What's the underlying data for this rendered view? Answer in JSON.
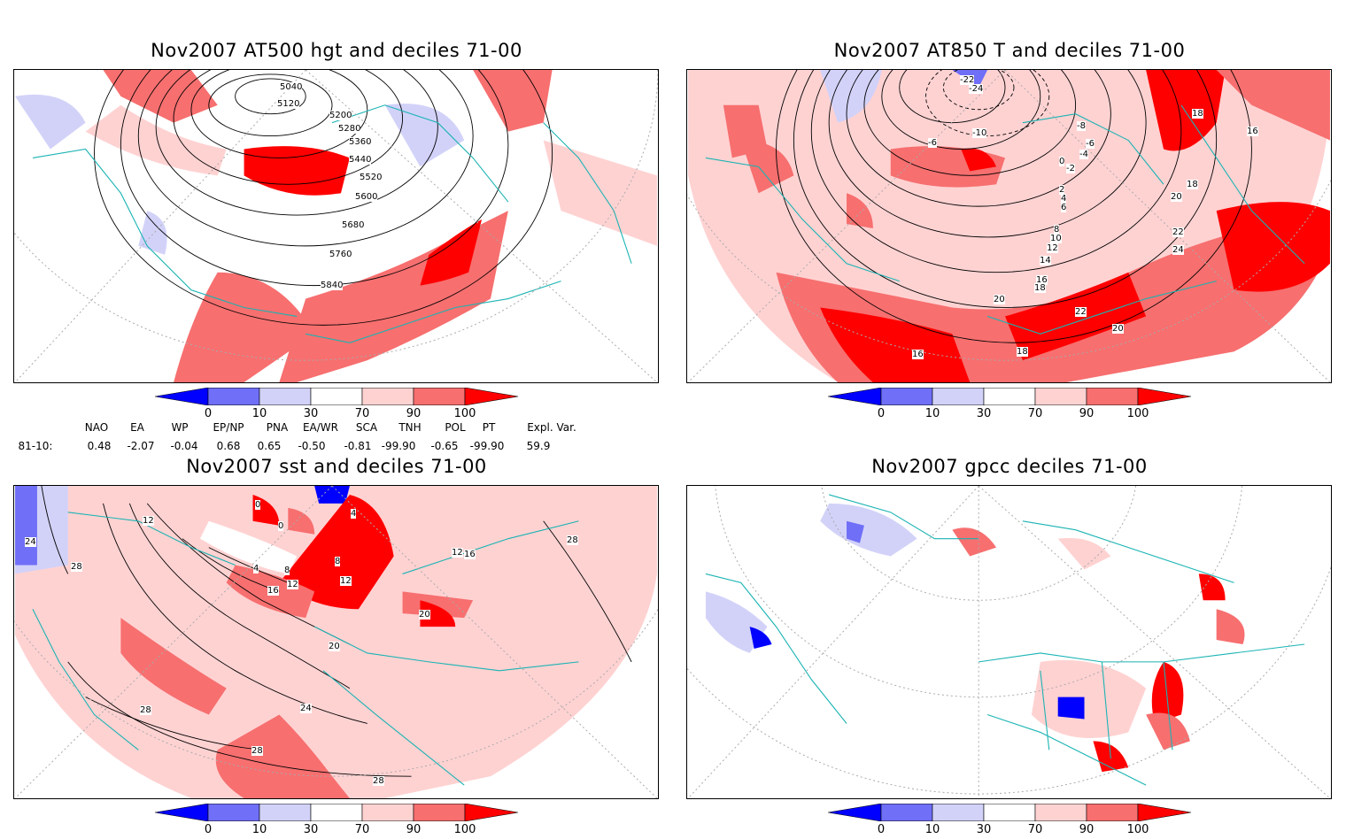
{
  "panels": [
    {
      "title": "Nov2007 AT500 hgt and deciles 71-00",
      "contour_labels": [
        "5040",
        "5120",
        "5200",
        "5280",
        "5360",
        "5440",
        "5520",
        "5600",
        "5680",
        "5760",
        "5840",
        "5440"
      ]
    },
    {
      "title": "Nov2007 AT850 T and deciles 71-00",
      "contour_labels": [
        "-22",
        "-24",
        "-10",
        "-8",
        "-6",
        "-6",
        "-4",
        "-2",
        "0",
        "2",
        "4",
        "6",
        "8",
        "10",
        "12",
        "14",
        "16",
        "18",
        "18",
        "20",
        "20",
        "22",
        "22",
        "24",
        "16",
        "18",
        "16",
        "18",
        "20"
      ]
    },
    {
      "title": "Nov2007 sst and deciles 71-00",
      "contour_labels": [
        "24",
        "28",
        "12",
        "4",
        "8",
        "12",
        "16",
        "8",
        "12",
        "4",
        "0",
        "0",
        "20",
        "20",
        "24",
        "28",
        "28",
        "28",
        "28",
        "12",
        "16"
      ]
    },
    {
      "title": "Nov2007 gpcc deciles 71-00",
      "contour_labels": []
    }
  ],
  "colorbar": {
    "labels": [
      "0",
      "10",
      "30",
      "70",
      "90",
      "100"
    ],
    "colors": [
      "#0000ff",
      "#6f6ff7",
      "#d2d2f9",
      "#ffffff",
      "#ffd2d2",
      "#f76f6f",
      "#ff0000"
    ]
  },
  "indices": {
    "period": "81-10:",
    "names": [
      "NAO",
      "EA",
      "WP",
      "EP/NP",
      "PNA",
      "EA/WR",
      "SCA",
      "TNH",
      "POL",
      "PT",
      "Expl. Var."
    ],
    "values": [
      "0.48",
      "-2.07",
      "-0.04",
      "0.68",
      "0.65",
      "-0.50",
      "-0.81",
      "-99.90",
      "-0.65",
      "-99.90",
      "59.9"
    ]
  }
}
